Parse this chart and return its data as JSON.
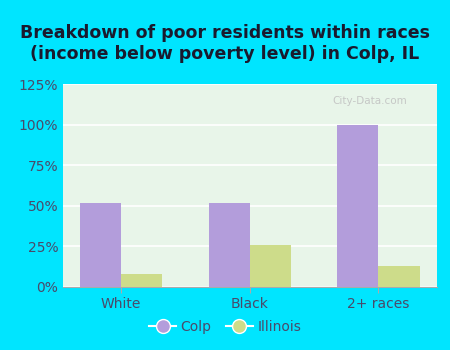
{
  "title": "Breakdown of poor residents within races\n(income below poverty level) in Colp, IL",
  "categories": [
    "White",
    "Black",
    "2+ races"
  ],
  "colp_values": [
    52,
    52,
    100
  ],
  "illinois_values": [
    8,
    26,
    13
  ],
  "colp_color": "#b39ddb",
  "illinois_color": "#cddc8a",
  "background_outer": "#00e5ff",
  "background_inner": "#e8f5e9",
  "ylim": [
    0,
    125
  ],
  "yticks": [
    0,
    25,
    50,
    75,
    100,
    125
  ],
  "ytick_labels": [
    "0%",
    "25%",
    "50%",
    "75%",
    "100%",
    "125%"
  ],
  "bar_width": 0.32,
  "legend_colp": "Colp",
  "legend_illinois": "Illinois",
  "title_fontsize": 12.5,
  "tick_fontsize": 10,
  "legend_fontsize": 10,
  "title_color": "#1a1a2e",
  "tick_color": "#4a4a6a",
  "watermark": "City-Data.com"
}
